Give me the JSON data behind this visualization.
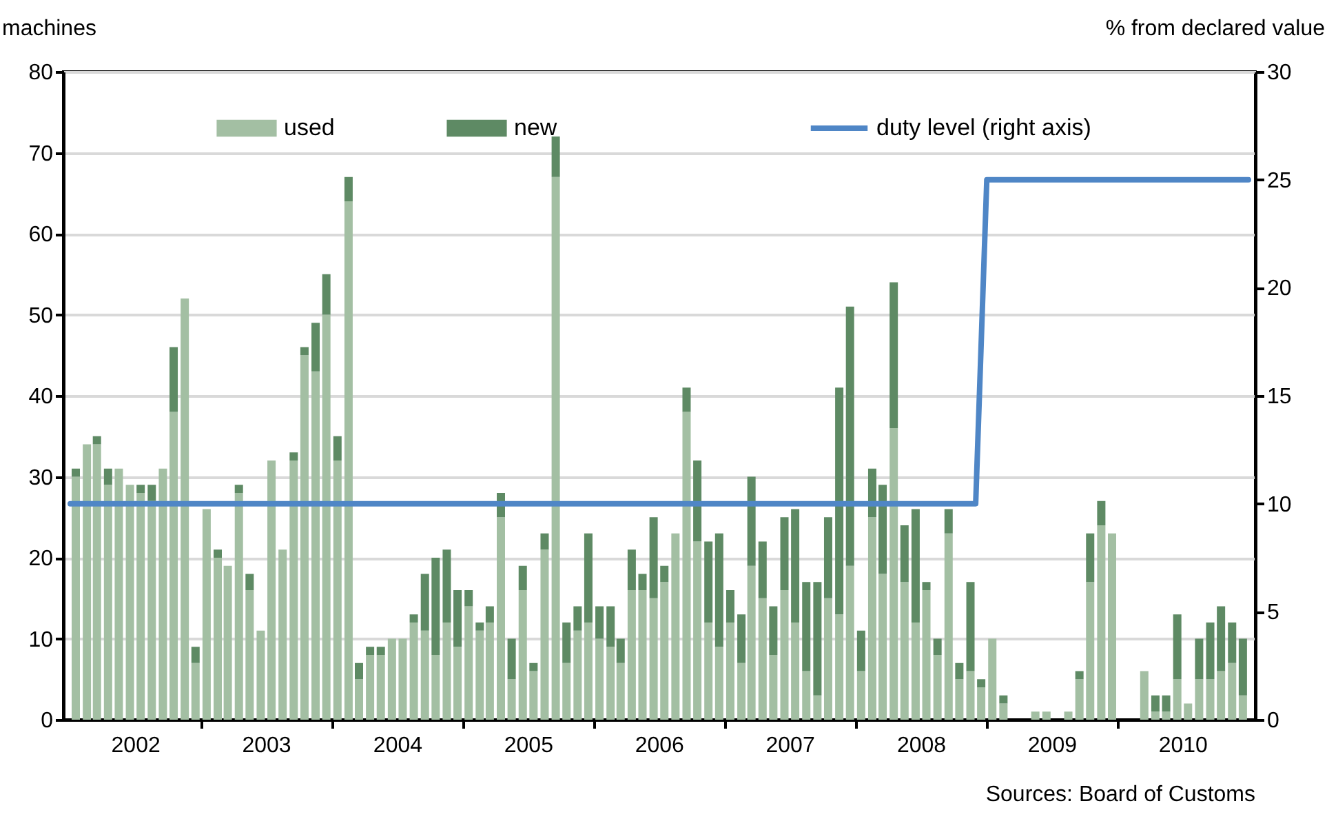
{
  "chart_data": {
    "type": "bar",
    "stacked": true,
    "x": [
      "2002-01",
      "2002-02",
      "2002-03",
      "2002-04",
      "2002-05",
      "2002-06",
      "2002-07",
      "2002-08",
      "2002-09",
      "2002-10",
      "2002-11",
      "2002-12",
      "2003-01",
      "2003-02",
      "2003-03",
      "2003-04",
      "2003-05",
      "2003-06",
      "2003-07",
      "2003-08",
      "2003-09",
      "2003-10",
      "2003-11",
      "2003-12",
      "2004-01",
      "2004-02",
      "2004-03",
      "2004-04",
      "2004-05",
      "2004-06",
      "2004-07",
      "2004-08",
      "2004-09",
      "2004-10",
      "2004-11",
      "2004-12",
      "2005-01",
      "2005-02",
      "2005-03",
      "2005-04",
      "2005-05",
      "2005-06",
      "2005-07",
      "2005-08",
      "2005-09",
      "2005-10",
      "2005-11",
      "2005-12",
      "2006-01",
      "2006-02",
      "2006-03",
      "2006-04",
      "2006-05",
      "2006-06",
      "2006-07",
      "2006-08",
      "2006-09",
      "2006-10",
      "2006-11",
      "2006-12",
      "2007-01",
      "2007-02",
      "2007-03",
      "2007-04",
      "2007-05",
      "2007-06",
      "2007-07",
      "2007-08",
      "2007-09",
      "2007-10",
      "2007-11",
      "2007-12",
      "2008-01",
      "2008-02",
      "2008-03",
      "2008-04",
      "2008-05",
      "2008-06",
      "2008-07",
      "2008-08",
      "2008-09",
      "2008-10",
      "2008-11",
      "2008-12",
      "2009-01",
      "2009-02",
      "2009-03",
      "2009-04",
      "2009-05",
      "2009-06",
      "2009-07",
      "2009-08",
      "2009-09",
      "2009-10",
      "2009-11",
      "2009-12",
      "2010-01",
      "2010-02",
      "2010-03",
      "2010-04",
      "2010-05",
      "2010-06",
      "2010-07",
      "2010-08",
      "2010-09",
      "2010-10",
      "2010-11",
      "2010-12"
    ],
    "series": [
      {
        "name": "used",
        "color": "#a3bfa3",
        "values": [
          30,
          34,
          34,
          29,
          31,
          29,
          28,
          27,
          31,
          38,
          52,
          7,
          26,
          20,
          19,
          28,
          16,
          11,
          32,
          21,
          32,
          45,
          43,
          50,
          32,
          64,
          5,
          8,
          8,
          10,
          10,
          12,
          11,
          8,
          12,
          9,
          14,
          11,
          12,
          25,
          5,
          16,
          6,
          21,
          67,
          7,
          11,
          12,
          10,
          9,
          7,
          16,
          16,
          15,
          17,
          23,
          38,
          22,
          12,
          9,
          12,
          7,
          19,
          15,
          8,
          16,
          12,
          6,
          3,
          15,
          13,
          19,
          6,
          25,
          18,
          36,
          17,
          12,
          16,
          8,
          23,
          5,
          6,
          4,
          10,
          2,
          null,
          null,
          1,
          1,
          null,
          1,
          5,
          17,
          24,
          23,
          null,
          null,
          6,
          1,
          1,
          5,
          2,
          5,
          5,
          6,
          7,
          3
        ]
      },
      {
        "name": "new",
        "color": "#5e8a64",
        "values": [
          1,
          0,
          1,
          2,
          0,
          0,
          1,
          2,
          0,
          8,
          0,
          2,
          0,
          1,
          0,
          1,
          2,
          0,
          0,
          0,
          1,
          1,
          6,
          5,
          3,
          3,
          2,
          1,
          1,
          0,
          0,
          1,
          7,
          12,
          9,
          7,
          2,
          1,
          2,
          3,
          5,
          3,
          1,
          2,
          5,
          5,
          3,
          11,
          4,
          5,
          3,
          5,
          2,
          10,
          2,
          0,
          3,
          10,
          10,
          14,
          4,
          6,
          11,
          7,
          6,
          9,
          14,
          11,
          14,
          10,
          28,
          32,
          5,
          6,
          11,
          18,
          7,
          14,
          1,
          2,
          3,
          2,
          11,
          1,
          0,
          1,
          null,
          null,
          0,
          0,
          null,
          0,
          1,
          6,
          3,
          0,
          null,
          null,
          0,
          2,
          2,
          8,
          0,
          5,
          7,
          8,
          5,
          7
        ]
      },
      {
        "name": "duty level (right axis)",
        "type": "line",
        "axis": "y2",
        "color": "#4f86c6",
        "x": [
          "2002-01",
          "2008-12",
          "2009-01",
          "2011-01"
        ],
        "values": [
          10,
          10,
          25,
          25
        ]
      }
    ],
    "xlim": [
      "2002-01",
      "2011-01"
    ],
    "xticks": [
      {
        "value": "2002-07",
        "label": "2002"
      },
      {
        "value": "2003-01",
        "label": null
      },
      {
        "value": "2003-07",
        "label": "2003"
      },
      {
        "value": "2004-01",
        "label": null
      },
      {
        "value": "2004-07",
        "label": "2004"
      },
      {
        "value": "2005-01",
        "label": null
      },
      {
        "value": "2005-07",
        "label": "2005"
      },
      {
        "value": "2006-01",
        "label": null
      },
      {
        "value": "2006-07",
        "label": "2006"
      },
      {
        "value": "2007-01",
        "label": null
      },
      {
        "value": "2007-07",
        "label": "2007"
      },
      {
        "value": "2008-01",
        "label": null
      },
      {
        "value": "2008-07",
        "label": "2008"
      },
      {
        "value": "2009-01",
        "label": null
      },
      {
        "value": "2009-07",
        "label": "2009"
      },
      {
        "value": "2010-01",
        "label": null
      },
      {
        "value": "2010-07",
        "label": "2010"
      }
    ],
    "ylim": [
      0,
      80
    ],
    "yticks": [
      0,
      10,
      20,
      30,
      40,
      50,
      60,
      70,
      80
    ],
    "y2lim": [
      0,
      30
    ],
    "y2ticks": [
      0,
      5,
      10,
      15,
      20,
      25,
      30
    ],
    "ylabel": "machines",
    "y2label": "% from declared value",
    "grid": "y",
    "legend": "top",
    "annotations": [
      "Sources: Board of Customs"
    ]
  }
}
